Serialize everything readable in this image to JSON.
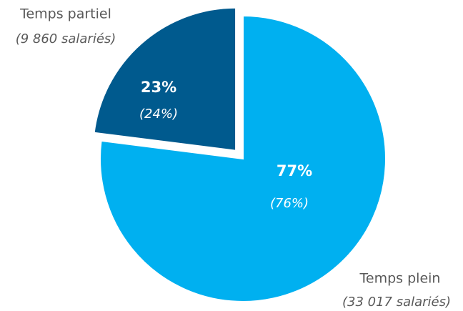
{
  "chart_data": {
    "type": "pie",
    "categories": [
      "Temps partiel",
      "Temps plein"
    ],
    "values": [
      23,
      77
    ],
    "value_labels": [
      "23%",
      "77%"
    ],
    "secondary_labels": [
      "(24%)",
      "(76%)"
    ],
    "category_notes": [
      "(9 860 salariés)",
      "(33 017 salariés)"
    ],
    "colors": [
      "#005a8e",
      "#00b0f0"
    ],
    "exploded": [
      true,
      false
    ]
  }
}
